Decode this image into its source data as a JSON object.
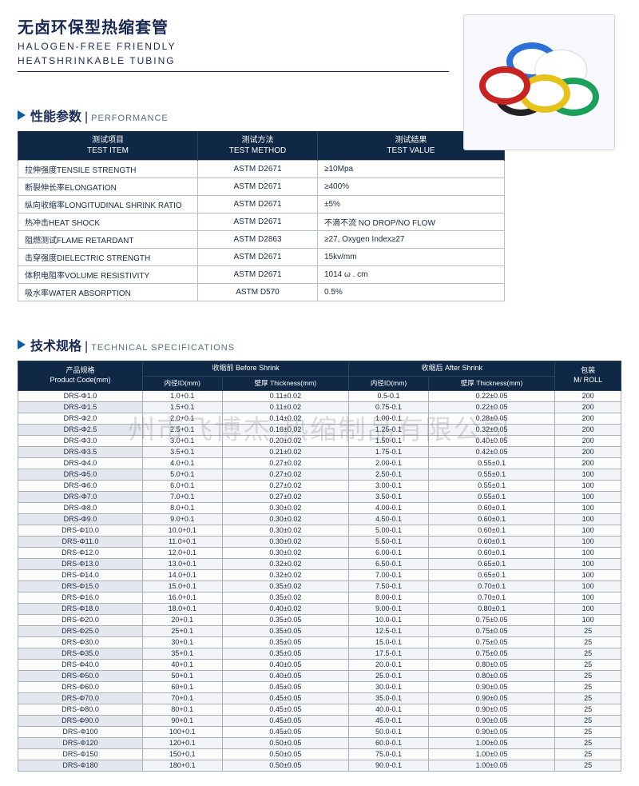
{
  "title": {
    "cn": "无卤环保型热缩套管",
    "en_1": "HALOGEN-FREE FRIENDLY",
    "en_2": "HEATSHRINKABLE TUBING"
  },
  "watermark": "州市飞博杰 热缩制品有限公司",
  "product_image_colors": [
    "#2c6fd6",
    "#ffffff",
    "#e6c21a",
    "#c72323",
    "#1aa05a",
    "#222222"
  ],
  "section_perf": {
    "cn": "性能参数",
    "en": "PERFORMANCE"
  },
  "section_spec": {
    "cn": "技术规格",
    "en": "TECHNICAL SPECIFICATIONS"
  },
  "perf_headers": {
    "item_cn": "测试项目",
    "item_en": "TEST ITEM",
    "method_cn": "测试方法",
    "method_en": "TEST METHOD",
    "value_cn": "测试结果",
    "value_en": "TEST VALUE"
  },
  "perf_rows": [
    {
      "item": "拉伸强度TENSILE STRENGTH",
      "method": "ASTM D2671",
      "value": "≥10Mpa"
    },
    {
      "item": "断裂伸长率ELONGATION",
      "method": "ASTM D2671",
      "value": "≥400%"
    },
    {
      "item": "纵向收缩率LONGITUDINAL SHRINK RATIO",
      "method": "ASTM D2671",
      "value": "±5%"
    },
    {
      "item": "热冲击HEAT SHOCK",
      "method": "ASTM D2671",
      "value": "不滴不流 NO DROP/NO FLOW"
    },
    {
      "item": "阻燃测试FLAME RETARDANT",
      "method": "ASTM D2863",
      "value": "≥27, Oxygen Index≥27"
    },
    {
      "item": "击穿强度DIELECTRIC STRENGTH",
      "method": "ASTM D2671",
      "value": "15kv/mm"
    },
    {
      "item": "体积电阻率VOLUME RESISTIVITY",
      "method": "ASTM D2671",
      "value": "1014 ω . cm"
    },
    {
      "item": "吸水率WATER ABSORPTION",
      "method": "ASTM D570",
      "value": "0.5%"
    }
  ],
  "spec_headers": {
    "code_cn": "产品规格",
    "code_en": "Product Code(mm)",
    "before": "收缩前 Before Shrink",
    "after": "收缩后 After Shrink",
    "id": "内径ID(mm)",
    "thk": "壁厚 Thickness(mm)",
    "roll_cn": "包装",
    "roll_en": "M/ ROLL"
  },
  "spec_rows": [
    {
      "code": "DRS-Φ1.0",
      "bid": "1.0+0.1",
      "bthk": "0.11±0.02",
      "aid": "0.5-0.1",
      "athk": "0.22±0.05",
      "roll": "200"
    },
    {
      "code": "DRS-Φ1.5",
      "bid": "1.5+0.1",
      "bthk": "0.11±0.02",
      "aid": "0.75-0.1",
      "athk": "0.22±0.05",
      "roll": "200"
    },
    {
      "code": "DRS-Φ2.0",
      "bid": "2.0+0.1",
      "bthk": "0.14±0.02",
      "aid": "1.00-0.1",
      "athk": "0.28±0.05",
      "roll": "200"
    },
    {
      "code": "DRS-Φ2.5",
      "bid": "2.5+0.1",
      "bthk": "0.16±0.02",
      "aid": "1.25-0.1",
      "athk": "0.32±0.05",
      "roll": "200"
    },
    {
      "code": "DRS-Φ3.0",
      "bid": "3.0+0.1",
      "bthk": "0.20±0.02",
      "aid": "1.50-0.1",
      "athk": "0.40±0.05",
      "roll": "200"
    },
    {
      "code": "DRS-Φ3.5",
      "bid": "3.5+0.1",
      "bthk": "0.21±0.02",
      "aid": "1.75-0.1",
      "athk": "0.42±0.05",
      "roll": "200"
    },
    {
      "code": "DRS-Φ4.0",
      "bid": "4.0+0.1",
      "bthk": "0.27±0.02",
      "aid": "2.00-0.1",
      "athk": "0.55±0.1",
      "roll": "200"
    },
    {
      "code": "DRS-Φ5.0",
      "bid": "5.0+0.1",
      "bthk": "0.27±0.02",
      "aid": "2.50-0.1",
      "athk": "0.55±0.1",
      "roll": "100"
    },
    {
      "code": "DRS-Φ6.0",
      "bid": "6.0+0.1",
      "bthk": "0.27±0.02",
      "aid": "3.00-0.1",
      "athk": "0.55±0.1",
      "roll": "100"
    },
    {
      "code": "DRS-Φ7.0",
      "bid": "7.0+0.1",
      "bthk": "0.27±0.02",
      "aid": "3.50-0.1",
      "athk": "0.55±0.1",
      "roll": "100"
    },
    {
      "code": "DRS-Φ8.0",
      "bid": "8.0+0.1",
      "bthk": "0.30±0.02",
      "aid": "4.00-0.1",
      "athk": "0.60±0.1",
      "roll": "100"
    },
    {
      "code": "DRS-Φ9.0",
      "bid": "9.0+0.1",
      "bthk": "0.30±0.02",
      "aid": "4.50-0.1",
      "athk": "0.60±0.1",
      "roll": "100"
    },
    {
      "code": "DRS-Φ10.0",
      "bid": "10.0+0.1",
      "bthk": "0.30±0.02",
      "aid": "5.00-0.1",
      "athk": "0.60±0.1",
      "roll": "100"
    },
    {
      "code": "DRS-Φ11.0",
      "bid": "11.0+0.1",
      "bthk": "0.30±0.02",
      "aid": "5.50-0.1",
      "athk": "0.60±0.1",
      "roll": "100"
    },
    {
      "code": "DRS-Φ12.0",
      "bid": "12.0+0.1",
      "bthk": "0.30±0.02",
      "aid": "6.00-0.1",
      "athk": "0.60±0.1",
      "roll": "100"
    },
    {
      "code": "DRS-Φ13.0",
      "bid": "13.0+0.1",
      "bthk": "0.32±0.02",
      "aid": "6.50-0.1",
      "athk": "0.65±0.1",
      "roll": "100"
    },
    {
      "code": "DRS-Φ14.0",
      "bid": "14.0+0.1",
      "bthk": "0.32±0.02",
      "aid": "7.00-0.1",
      "athk": "0.65±0.1",
      "roll": "100"
    },
    {
      "code": "DRS-Φ15.0",
      "bid": "15.0+0.1",
      "bthk": "0.35±0.02",
      "aid": "7.50-0.1",
      "athk": "0.70±0.1",
      "roll": "100"
    },
    {
      "code": "DRS-Φ16.0",
      "bid": "16.0+0.1",
      "bthk": "0.35±0.02",
      "aid": "8.00-0.1",
      "athk": "0.70±0.1",
      "roll": "100"
    },
    {
      "code": "DRS-Φ18.0",
      "bid": "18.0+0.1",
      "bthk": "0.40±0.02",
      "aid": "9.00-0.1",
      "athk": "0.80±0.1",
      "roll": "100"
    },
    {
      "code": "DRS-Φ20.0",
      "bid": "20+0.1",
      "bthk": "0.35±0.05",
      "aid": "10.0-0.1",
      "athk": "0.75±0.05",
      "roll": "100"
    },
    {
      "code": "DRS-Φ25.0",
      "bid": "25+0.1",
      "bthk": "0.35±0.05",
      "aid": "12.5-0.1",
      "athk": "0.75±0.05",
      "roll": "25"
    },
    {
      "code": "DRS-Φ30.0",
      "bid": "30+0.1",
      "bthk": "0.35±0.05",
      "aid": "15.0-0.1",
      "athk": "0.75±0.05",
      "roll": "25"
    },
    {
      "code": "DRS-Φ35.0",
      "bid": "35+0.1",
      "bthk": "0.35±0.05",
      "aid": "17.5-0.1",
      "athk": "0.75±0.05",
      "roll": "25"
    },
    {
      "code": "DRS-Φ40.0",
      "bid": "40+0.1",
      "bthk": "0.40±0.05",
      "aid": "20.0-0.1",
      "athk": "0.80±0.05",
      "roll": "25"
    },
    {
      "code": "DRS-Φ50.0",
      "bid": "50+0.1",
      "bthk": "0.40±0.05",
      "aid": "25.0-0.1",
      "athk": "0.80±0.05",
      "roll": "25"
    },
    {
      "code": "DRS-Φ60.0",
      "bid": "60+0.1",
      "bthk": "0.45±0.05",
      "aid": "30.0-0.1",
      "athk": "0.90±0.05",
      "roll": "25"
    },
    {
      "code": "DRS-Φ70.0",
      "bid": "70+0.1",
      "bthk": "0.45±0.05",
      "aid": "35.0-0.1",
      "athk": "0.90±0.05",
      "roll": "25"
    },
    {
      "code": "DRS-Φ80.0",
      "bid": "80+0.1",
      "bthk": "0.45±0.05",
      "aid": "40.0-0.1",
      "athk": "0.90±0.05",
      "roll": "25"
    },
    {
      "code": "DRS-Φ90.0",
      "bid": "90+0.1",
      "bthk": "0.45±0.05",
      "aid": "45.0-0.1",
      "athk": "0.90±0.05",
      "roll": "25"
    },
    {
      "code": "DRS-Φ100",
      "bid": "100+0.1",
      "bthk": "0.45±0.05",
      "aid": "50.0-0.1",
      "athk": "0.90±0.05",
      "roll": "25"
    },
    {
      "code": "DRS-Φ120",
      "bid": "120+0.1",
      "bthk": "0.50±0.05",
      "aid": "60.0-0.1",
      "athk": "1.00±0.05",
      "roll": "25"
    },
    {
      "code": "DRS-Φ150",
      "bid": "150+0.1",
      "bthk": "0.50±0.05",
      "aid": "75.0-0.1",
      "athk": "1.00±0.05",
      "roll": "25"
    },
    {
      "code": "DRS-Φ180",
      "bid": "180+0.1",
      "bthk": "0.50±0.05",
      "aid": "90.0-0.1",
      "athk": "1.00±0.05",
      "roll": "25"
    }
  ]
}
